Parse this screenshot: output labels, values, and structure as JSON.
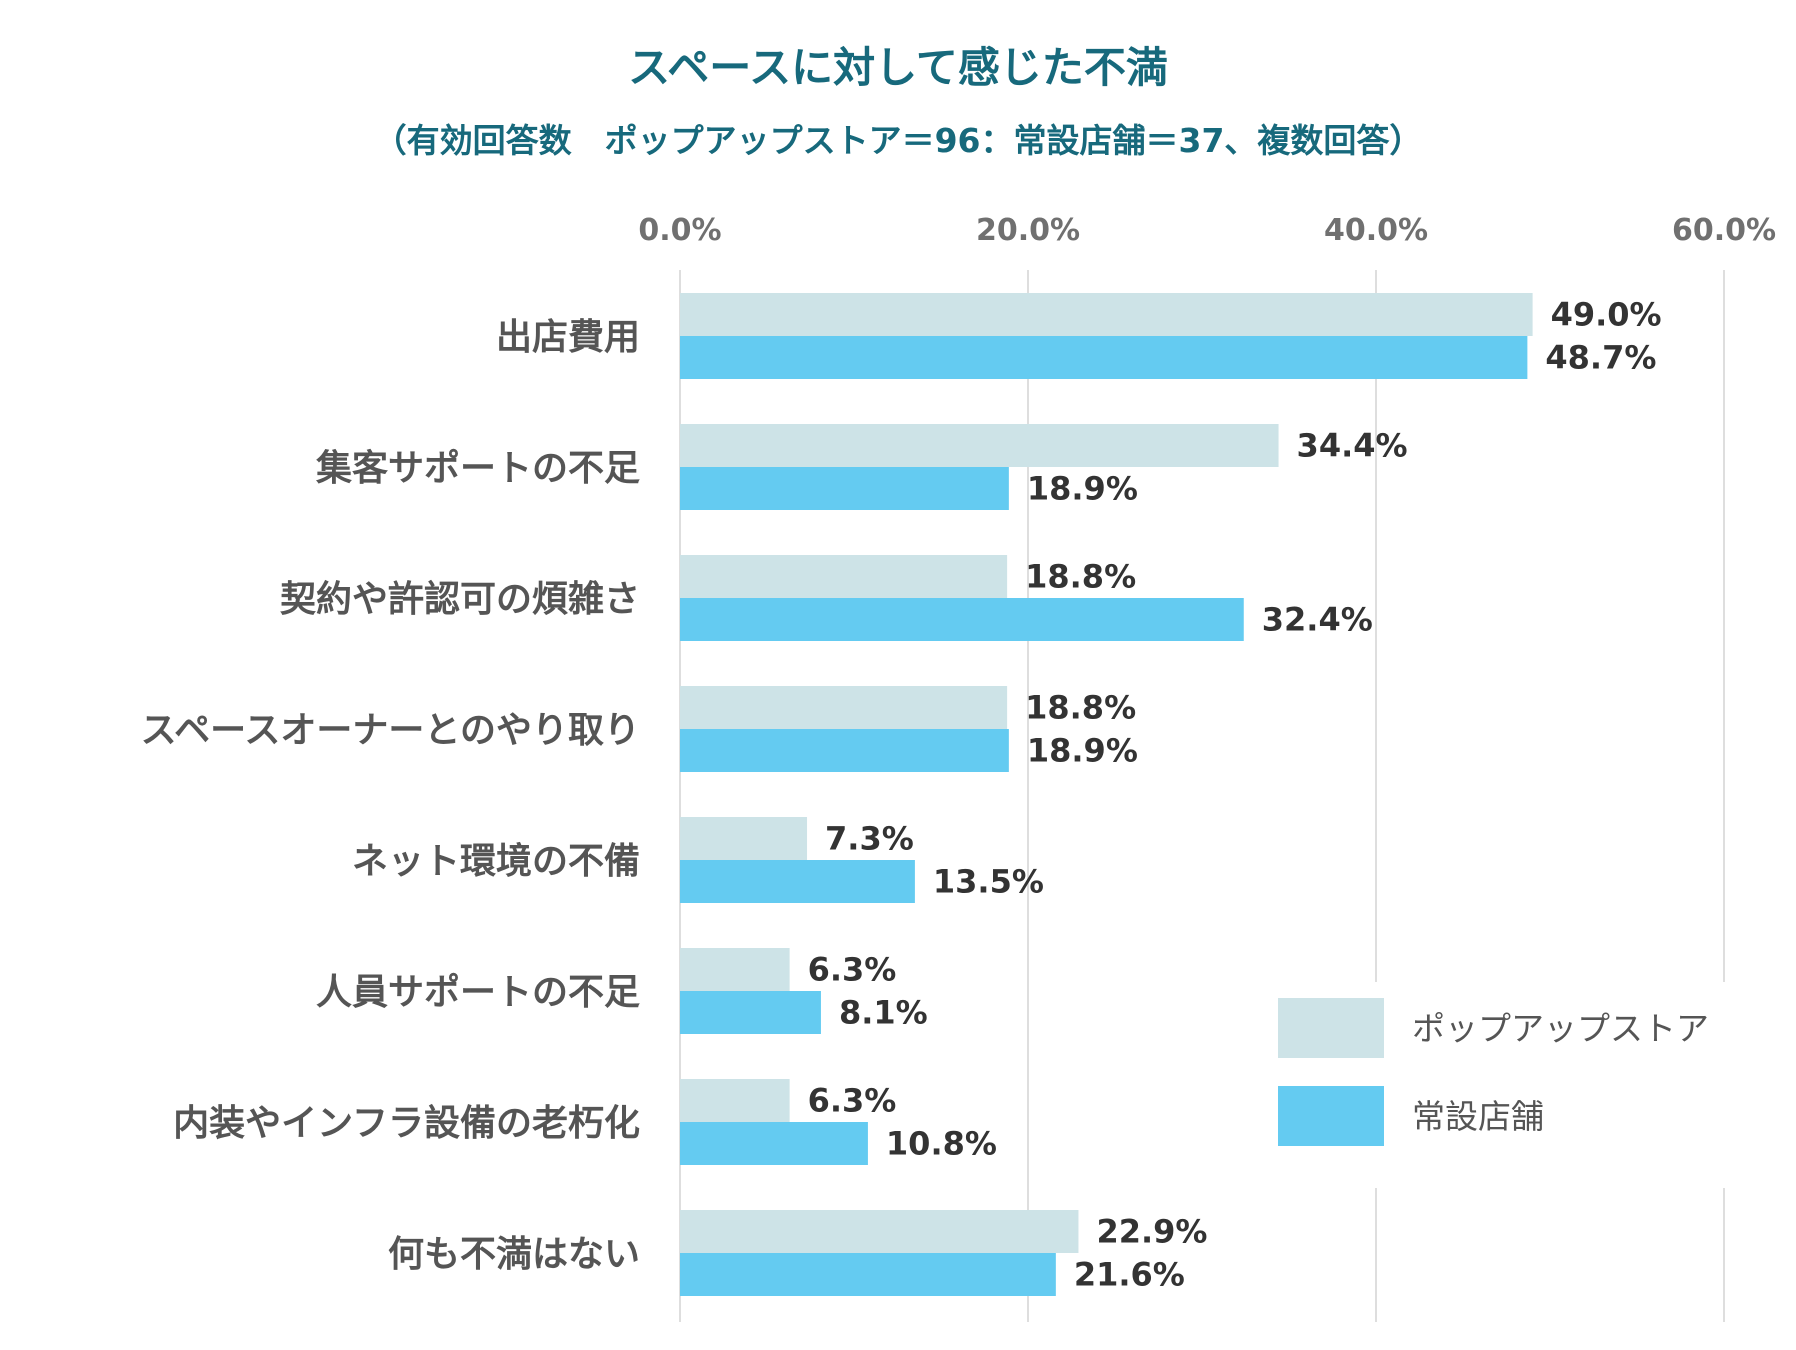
{
  "chart_data": {
    "type": "bar",
    "orientation": "horizontal",
    "title": "スペースに対して感じた不満",
    "subtitle": "（有効回答数　ポップアップストア＝96：常設店舗＝37、複数回答）",
    "categories": [
      "出店費用",
      "集客サポートの不足",
      "契約や許認可の煩雑さ",
      "スペースオーナーとのやり取り",
      "ネット環境の不備",
      "人員サポートの不足",
      "内装やインフラ設備の老朽化",
      "何も不満はない"
    ],
    "series": [
      {
        "name": "ポップアップストア",
        "color": "#cde3e7",
        "values": [
          49.0,
          34.4,
          18.8,
          18.8,
          7.3,
          6.3,
          6.3,
          22.9
        ],
        "labels": [
          "49.0%",
          "34.4%",
          "18.8%",
          "18.8%",
          "7.3%",
          "6.3%",
          "6.3%",
          "22.9%"
        ]
      },
      {
        "name": "常設店舗",
        "color": "#64cbf1",
        "values": [
          48.7,
          18.9,
          32.4,
          18.9,
          13.5,
          8.1,
          10.8,
          21.6
        ],
        "labels": [
          "48.7%",
          "18.9%",
          "32.4%",
          "18.9%",
          "13.5%",
          "8.1%",
          "10.8%",
          "21.6%"
        ]
      }
    ],
    "xlim": [
      0,
      60
    ],
    "ticks": [
      0,
      20,
      40,
      60
    ],
    "tick_labels": [
      "0.0%",
      "20.0%",
      "40.0%",
      "60.0%"
    ],
    "axis_position": "top",
    "grid": true,
    "legend_position": "bottom-right"
  }
}
